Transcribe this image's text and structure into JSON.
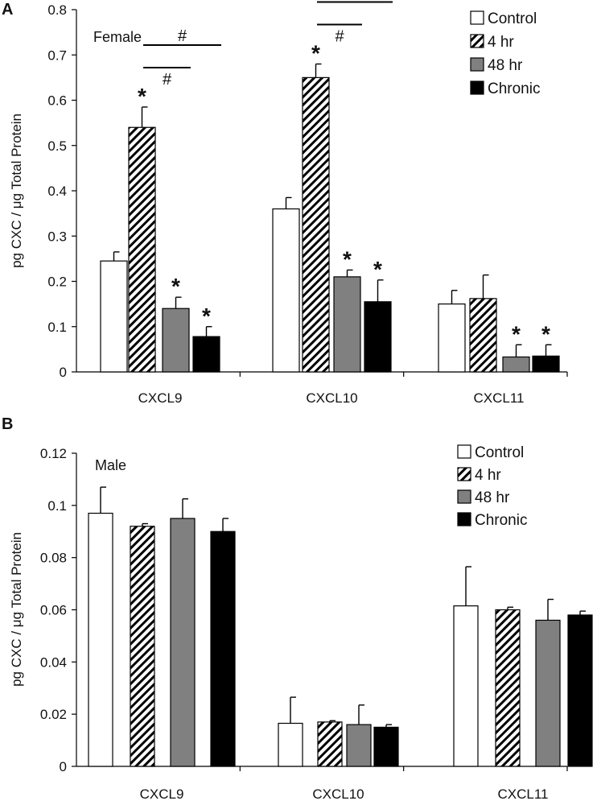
{
  "chart_data": [
    {
      "type": "bar",
      "panel": "A",
      "annotation": "Female",
      "ylabel": "pg CXC / μg Total Protein",
      "ylim": [
        0,
        0.8
      ],
      "yticks": [
        "0",
        "0.1",
        "0.2",
        "0.3",
        "0.4",
        "0.5",
        "0.6",
        "0.7",
        "0.8"
      ],
      "categories": [
        "CXCL9",
        "CXCL10",
        "CXCL11"
      ],
      "series": [
        {
          "name": "Control",
          "values": [
            0.245,
            0.36,
            0.15
          ],
          "errors": [
            0.02,
            0.025,
            0.03
          ]
        },
        {
          "name": "4 hr",
          "values": [
            0.54,
            0.65,
            0.162
          ],
          "errors": [
            0.045,
            0.03,
            0.052
          ]
        },
        {
          "name": "48 hr",
          "values": [
            0.14,
            0.21,
            0.033
          ],
          "errors": [
            0.025,
            0.015,
            0.027
          ]
        },
        {
          "name": "Chronic",
          "values": [
            0.078,
            0.155,
            0.035
          ],
          "errors": [
            0.022,
            0.048,
            0.025
          ]
        }
      ],
      "significance": {
        "star": "*",
        "hash": "#",
        "stars": [
          [
            false,
            true,
            true,
            true
          ],
          [
            false,
            true,
            true,
            true
          ],
          [
            false,
            false,
            true,
            true
          ]
        ],
        "hash_brackets": [
          {
            "category": 0,
            "from": 1,
            "to": 2
          },
          {
            "category": 0,
            "from": 1,
            "to": 3
          },
          {
            "category": 1,
            "from": 1,
            "to": 2
          },
          {
            "category": 1,
            "from": 1,
            "to": 3
          }
        ]
      },
      "legend_position": "top-right"
    },
    {
      "type": "bar",
      "panel": "B",
      "annotation": "Male",
      "ylabel": "pg CXC / μg Total Protein",
      "ylim": [
        0,
        0.12
      ],
      "yticks": [
        "0",
        "0.02",
        "0.04",
        "0.06",
        "0.08",
        "0.1",
        "0.12"
      ],
      "categories": [
        "CXCL9",
        "CXCL10",
        "CXCL11"
      ],
      "series": [
        {
          "name": "Control",
          "values": [
            0.097,
            0.0165,
            0.0615
          ],
          "errors": [
            0.01,
            0.01,
            0.015
          ]
        },
        {
          "name": "4 hr",
          "values": [
            0.092,
            0.017,
            0.06
          ],
          "errors": [
            0.001,
            0.0005,
            0.001
          ]
        },
        {
          "name": "48 hr",
          "values": [
            0.095,
            0.016,
            0.056
          ],
          "errors": [
            0.0075,
            0.0075,
            0.008
          ]
        },
        {
          "name": "Chronic",
          "values": [
            0.09,
            0.015,
            0.058
          ],
          "errors": [
            0.005,
            0.001,
            0.0015
          ]
        }
      ],
      "legend_position": "top-right"
    }
  ]
}
